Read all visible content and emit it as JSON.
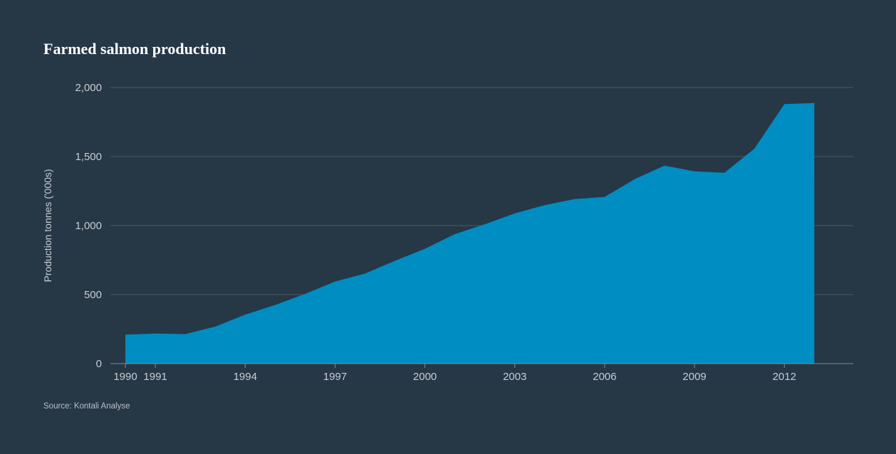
{
  "chart_data": {
    "type": "area",
    "title": "Farmed salmon production",
    "ylabel": "Production tonnes ('000s)",
    "xlabel": "",
    "source": "Source: Kontali Analyse",
    "x": [
      1990,
      1991,
      1992,
      1993,
      1994,
      1995,
      1996,
      1997,
      1998,
      1999,
      2000,
      2001,
      2002,
      2003,
      2004,
      2005,
      2006,
      2007,
      2008,
      2009,
      2010,
      2011,
      2012,
      2013
    ],
    "values": [
      210,
      218,
      214,
      268,
      355,
      425,
      505,
      595,
      652,
      745,
      832,
      938,
      1010,
      1088,
      1148,
      1192,
      1207,
      1336,
      1434,
      1393,
      1383,
      1557,
      1880,
      1888
    ],
    "ylim": [
      0,
      2000
    ],
    "yticks": [
      0,
      500,
      1000,
      1500,
      2000
    ],
    "ytick_labels": [
      "0",
      "500",
      "1,000",
      "1,500",
      "2,000"
    ],
    "xticks": [
      1990,
      1991,
      1994,
      1997,
      2000,
      2003,
      2006,
      2009,
      2012
    ],
    "xtick_labels": [
      "1990",
      "1991",
      "1994",
      "1997",
      "2000",
      "2003",
      "2006",
      "2009",
      "2012"
    ],
    "grid": true,
    "colors": {
      "background": "#263746",
      "fill": "#008dc2",
      "grid": "#4a5a68",
      "text": "#c7cdd3",
      "title": "#ffffff"
    }
  }
}
